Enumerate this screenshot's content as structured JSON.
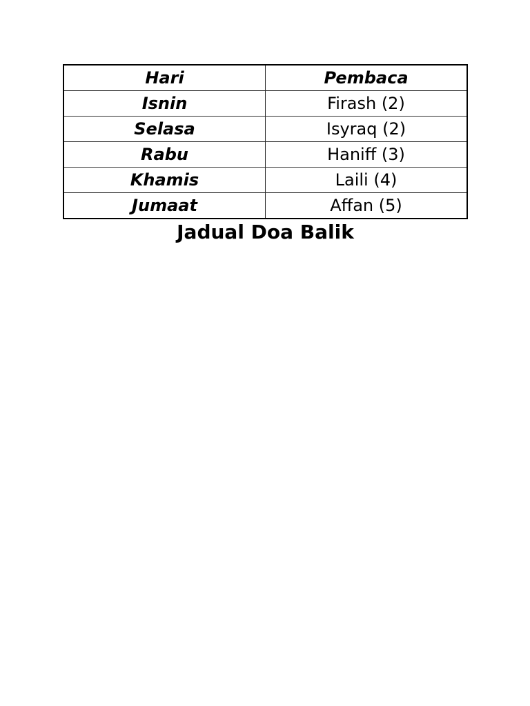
{
  "caption": "Jadual Doa Balik",
  "table": {
    "headers": [
      "Hari",
      "Pembaca"
    ],
    "rows": [
      {
        "day": "Isnin",
        "reader": "Firash (2)"
      },
      {
        "day": "Selasa",
        "reader": "Isyraq (2)"
      },
      {
        "day": "Rabu",
        "reader": "Haniff (3)"
      },
      {
        "day": "Khamis",
        "reader": "Laili (4)"
      },
      {
        "day": "Jumaat",
        "reader": "Affan (5)"
      }
    ]
  },
  "colors": {
    "background": "#ffffff",
    "text": "#000000",
    "border_outer": "#000000",
    "border_inner": "#2b2b2b"
  }
}
